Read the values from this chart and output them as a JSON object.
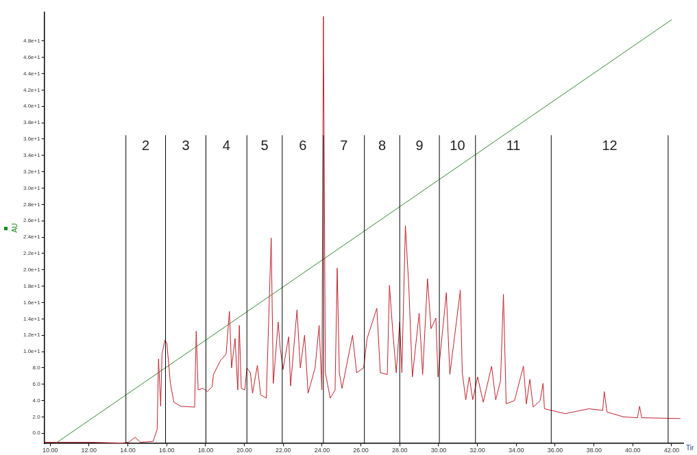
{
  "chart_data": {
    "type": "line",
    "xlabel": "Tir",
    "ylabel": "AU",
    "xlim": [
      9.7,
      42.6
    ],
    "ylim": [
      -1.25,
      51.5
    ],
    "xticks": [
      {
        "value": 10,
        "label": "10.00"
      },
      {
        "value": 12,
        "label": "12.00"
      },
      {
        "value": 14,
        "label": "14.00"
      },
      {
        "value": 16,
        "label": "16.00"
      },
      {
        "value": 18,
        "label": "18.00"
      },
      {
        "value": 20,
        "label": "20.00"
      },
      {
        "value": 22,
        "label": "22.00"
      },
      {
        "value": 24,
        "label": "24.00"
      },
      {
        "value": 26,
        "label": "26.00"
      },
      {
        "value": 28,
        "label": "28.00"
      },
      {
        "value": 30,
        "label": "30.00"
      },
      {
        "value": 32,
        "label": "32.00"
      },
      {
        "value": 34,
        "label": "34.00"
      },
      {
        "value": 36,
        "label": "36.00"
      },
      {
        "value": 38,
        "label": "38.00"
      },
      {
        "value": 40,
        "label": "40.00"
      },
      {
        "value": 42,
        "label": "42.00"
      }
    ],
    "yticks": [
      {
        "value": 0,
        "label": "0.0"
      },
      {
        "value": 2,
        "label": "2.0"
      },
      {
        "value": 4,
        "label": "4.0"
      },
      {
        "value": 6,
        "label": "6.0"
      },
      {
        "value": 8,
        "label": "8.0"
      },
      {
        "value": 10,
        "label": "1.0e+1"
      },
      {
        "value": 12,
        "label": "1.2e+1"
      },
      {
        "value": 14,
        "label": "1.4e+1"
      },
      {
        "value": 16,
        "label": "1.6e+1"
      },
      {
        "value": 18,
        "label": "1.8e+1"
      },
      {
        "value": 20,
        "label": "2.0e+1"
      },
      {
        "value": 22,
        "label": "2.2e+1"
      },
      {
        "value": 24,
        "label": "2.4e+1"
      },
      {
        "value": 26,
        "label": "2.6e+1"
      },
      {
        "value": 28,
        "label": "2.8e+1"
      },
      {
        "value": 30,
        "label": "3.0e+1"
      },
      {
        "value": 32,
        "label": "3.2e+1"
      },
      {
        "value": 34,
        "label": "3.4e+1"
      },
      {
        "value": 36,
        "label": "3.6e+1"
      },
      {
        "value": 38,
        "label": "3.8e+1"
      },
      {
        "value": 40,
        "label": "4.0e+1"
      },
      {
        "value": 42,
        "label": "4.2e+1"
      },
      {
        "value": 44,
        "label": "4.4e+1"
      },
      {
        "value": 46,
        "label": "4.6e+1"
      },
      {
        "value": 48,
        "label": "4.8e+1"
      }
    ],
    "grid": false,
    "legend": false,
    "marker": "none",
    "line_style": "solid",
    "series": [
      {
        "color": "#c0202a",
        "x": [
          9.71,
          12.08,
          13.69,
          14.04,
          14.37,
          14.65,
          15.3,
          15.51,
          15.58,
          15.69,
          15.76,
          15.91,
          16.01,
          16.19,
          16.37,
          16.73,
          17.44,
          17.52,
          17.62,
          17.87,
          18.09,
          18.34,
          18.41,
          18.77,
          19.06,
          19.23,
          19.34,
          19.52,
          19.66,
          19.74,
          19.84,
          20.02,
          20.13,
          20.31,
          20.42,
          20.67,
          20.84,
          21.13,
          21.38,
          21.49,
          21.74,
          21.85,
          21.99,
          22.28,
          22.38,
          22.71,
          22.88,
          23.1,
          23.28,
          23.64,
          23.85,
          23.99,
          24.07,
          24.17,
          24.42,
          24.67,
          24.78,
          24.89,
          25.03,
          25.57,
          25.78,
          26.14,
          26.32,
          26.82,
          27.0,
          27.36,
          27.47,
          27.64,
          27.82,
          28.0,
          28.11,
          28.29,
          28.47,
          28.65,
          29.0,
          29.18,
          29.43,
          29.61,
          29.86,
          29.97,
          30.4,
          30.58,
          31.12,
          31.22,
          31.4,
          31.58,
          31.76,
          32.01,
          32.3,
          32.73,
          32.94,
          33.19,
          33.34,
          33.48,
          33.91,
          34.37,
          34.52,
          34.7,
          34.87,
          35.23,
          35.38,
          35.45,
          35.81,
          36.52,
          37.74,
          38.45,
          38.53,
          38.67,
          39.53,
          40.24,
          40.35,
          40.46,
          42.45
        ],
        "values": [
          -1.1,
          -1.1,
          -1.2,
          -1.1,
          -0.5,
          -1.1,
          -1.0,
          0.5,
          9.1,
          3.3,
          9.7,
          11.4,
          11.0,
          6.1,
          3.8,
          3.3,
          3.2,
          12.5,
          5.3,
          5.5,
          5.1,
          5.7,
          7.2,
          8.9,
          9.7,
          14.9,
          8.0,
          11.6,
          5.3,
          13.2,
          5.5,
          5.3,
          8.0,
          7.4,
          4.9,
          8.3,
          4.7,
          4.3,
          23.9,
          6.1,
          13.6,
          10.3,
          7.8,
          11.8,
          5.8,
          15.1,
          8.0,
          12.0,
          4.9,
          8.0,
          13.2,
          5.3,
          51.0,
          7.4,
          4.3,
          5.3,
          20.2,
          7.4,
          5.5,
          12.0,
          7.4,
          8.0,
          11.6,
          15.3,
          7.4,
          7.2,
          18.1,
          12.5,
          7.4,
          13.6,
          7.4,
          25.4,
          17.8,
          6.9,
          14.7,
          7.2,
          18.9,
          12.8,
          14.1,
          6.9,
          17.2,
          7.2,
          17.5,
          7.4,
          4.1,
          6.9,
          4.1,
          6.9,
          3.8,
          8.2,
          4.1,
          6.4,
          17.0,
          3.6,
          4.0,
          8.2,
          3.6,
          6.6,
          3.2,
          4.0,
          6.1,
          3.0,
          2.8,
          2.4,
          3.0,
          2.8,
          5.1,
          2.6,
          2.0,
          1.9,
          3.3,
          1.9,
          1.8
        ]
      },
      {
        "color": "#2e8b2e",
        "x": [
          10.3,
          42.0
        ],
        "values": [
          -1.2,
          50.6
        ]
      }
    ],
    "ref_lines": [
      {
        "axis": "x",
        "value": 13.9,
        "color": "#000000"
      },
      {
        "axis": "x",
        "value": 15.94,
        "color": "#000000"
      },
      {
        "axis": "x",
        "value": 18.02,
        "color": "#000000"
      },
      {
        "axis": "x",
        "value": 20.13,
        "color": "#000000"
      },
      {
        "axis": "x",
        "value": 21.95,
        "color": "#000000"
      },
      {
        "axis": "x",
        "value": 24.07,
        "color": "#000000"
      },
      {
        "axis": "x",
        "value": 26.18,
        "color": "#000000"
      },
      {
        "axis": "x",
        "value": 28.0,
        "color": "#000000"
      },
      {
        "axis": "x",
        "value": 30.04,
        "color": "#000000"
      },
      {
        "axis": "x",
        "value": 31.9,
        "color": "#000000"
      },
      {
        "axis": "x",
        "value": 35.8,
        "color": "#000000"
      },
      {
        "axis": "x",
        "value": 41.82,
        "color": "#000000"
      }
    ],
    "annotations": [
      "2",
      "3",
      "4",
      "5",
      "6",
      "7",
      "8",
      "9",
      "10",
      "11",
      "12"
    ]
  }
}
